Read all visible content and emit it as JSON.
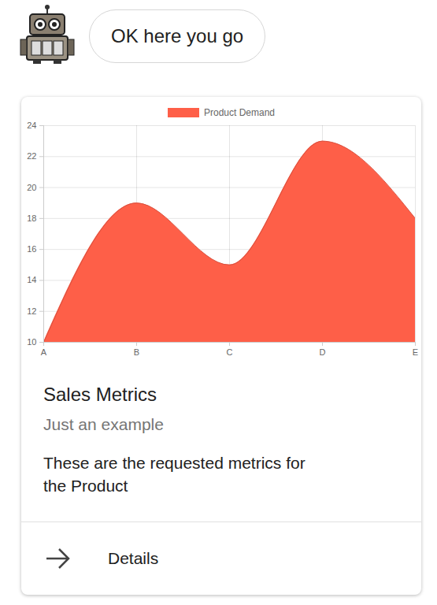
{
  "message": "OK here you go",
  "card": {
    "title": "Sales Metrics",
    "subtitle": "Just an example",
    "text": "These are the requested metrics for the Product",
    "button": "Details"
  },
  "chart_data": {
    "type": "area",
    "categories": [
      "A",
      "B",
      "C",
      "D",
      "E"
    ],
    "series": [
      {
        "name": "Product Demand",
        "color": "#fe5f48",
        "values": [
          10,
          19,
          15,
          23,
          18
        ]
      }
    ],
    "ylim": [
      10,
      24
    ],
    "yticks": [
      10,
      12,
      14,
      16,
      18,
      20,
      22,
      24
    ],
    "grid": true,
    "legend": "top"
  }
}
